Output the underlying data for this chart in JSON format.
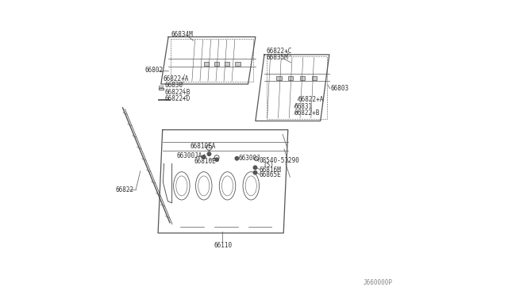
{
  "bg_color": "#ffffff",
  "line_color": "#555555",
  "label_color": "#333333",
  "diagram_id": "J660000P",
  "parts_left_panel": [
    "66834M",
    "66802",
    "66822+A",
    "66830",
    "66822+B",
    "66822+D"
  ],
  "parts_right_panel": [
    "66822+C",
    "66835M",
    "66803",
    "66822+A",
    "66831",
    "66822+B"
  ],
  "parts_center": [
    "66810EA",
    "66300JA",
    "66810E",
    "66300J",
    "08540-51290",
    "(5)",
    "66816M",
    "66865E"
  ],
  "parts_main": [
    "66110",
    "66822"
  ]
}
